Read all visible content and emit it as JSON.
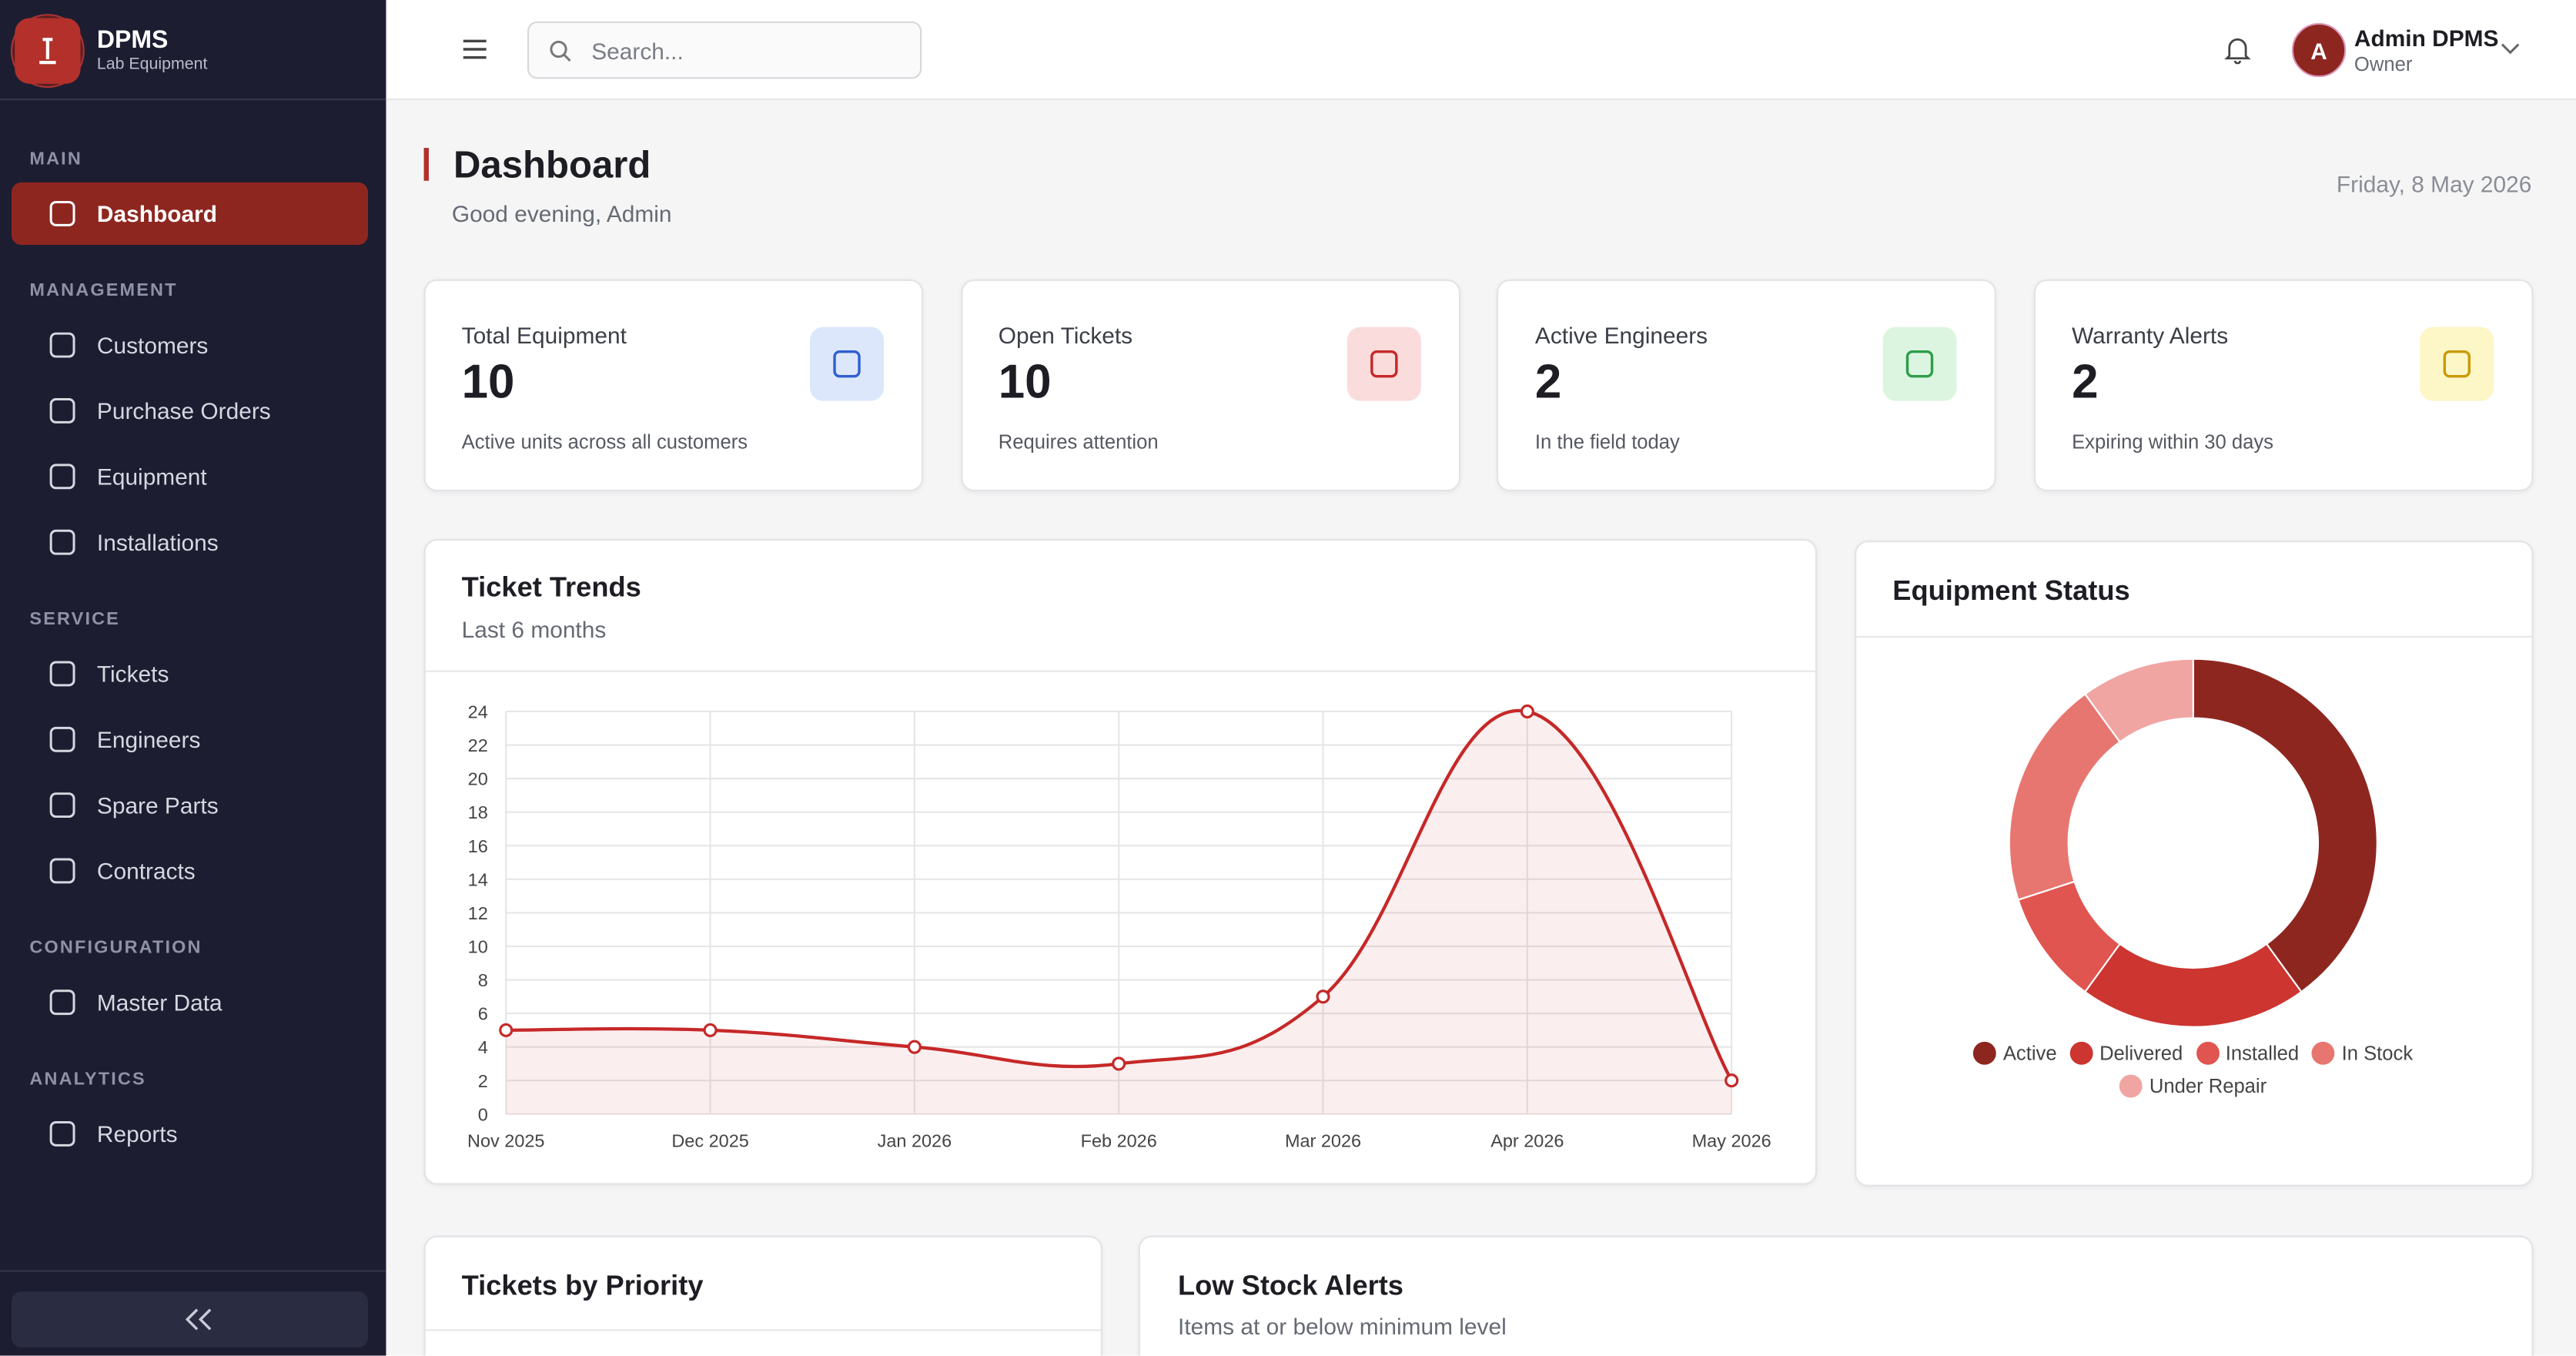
{
  "sidebar": {
    "brand": "DPMS",
    "brand_sub": "Lab Equipment",
    "sections": [
      {
        "title": "MAIN",
        "items": [
          "Dashboard"
        ]
      },
      {
        "title": "MANAGEMENT",
        "items": [
          "Customers",
          "Purchase Orders",
          "Equipment",
          "Installations"
        ]
      },
      {
        "title": "SERVICE",
        "items": [
          "Tickets",
          "Engineers",
          "Spare Parts",
          "Contracts"
        ]
      },
      {
        "title": "CONFIGURATION",
        "items": [
          "Master Data"
        ]
      },
      {
        "title": "ANALYTICS",
        "items": [
          "Reports"
        ]
      }
    ]
  },
  "topbar": {
    "search_placeholder": "Search...",
    "user_initial": "A",
    "user_name": "Admin DPMS",
    "user_role": "Owner"
  },
  "header": {
    "title": "Dashboard",
    "greeting": "Good evening, Admin",
    "date": "Friday, 8 May 2026"
  },
  "stats": [
    {
      "label": "Total Equipment",
      "value": 10,
      "note": "Active units across all customers"
    },
    {
      "label": "Open Tickets",
      "value": 10,
      "note": "Requires attention"
    },
    {
      "label": "Active Engineers",
      "value": 2,
      "note": "In the field today"
    },
    {
      "label": "Warranty Alerts",
      "value": 2,
      "note": "Expiring within 30 days"
    }
  ],
  "chart_data": [
    {
      "type": "line",
      "title": "Ticket Trends",
      "subtitle": "Last 6 months",
      "categories": [
        "Nov 2025",
        "Dec 2025",
        "Jan 2026",
        "Feb 2026",
        "Mar 2026",
        "Apr 2026",
        "May 2026"
      ],
      "values": [
        5,
        5,
        4,
        3,
        7,
        24,
        2
      ],
      "color": "#c62828",
      "ylim": [
        0,
        24
      ],
      "yticks": [
        0,
        2,
        4,
        6,
        8,
        10,
        12,
        14,
        16,
        18,
        20,
        22,
        24
      ],
      "grid": true
    },
    {
      "type": "pie",
      "title": "Equipment Status",
      "donut": true,
      "categories": [
        "Active",
        "Delivered",
        "Installed",
        "In Stock",
        "Under Repair"
      ],
      "values": [
        4,
        2,
        1,
        2,
        1
      ],
      "colors": [
        "#8e2620",
        "#cc3530",
        "#e05550",
        "#e87670",
        "#f0a5a2"
      ]
    }
  ],
  "bottom": {
    "priority_title": "Tickets by Priority",
    "low_stock_title": "Low Stock Alerts",
    "low_stock_subtitle": "Items at or below minimum level"
  }
}
